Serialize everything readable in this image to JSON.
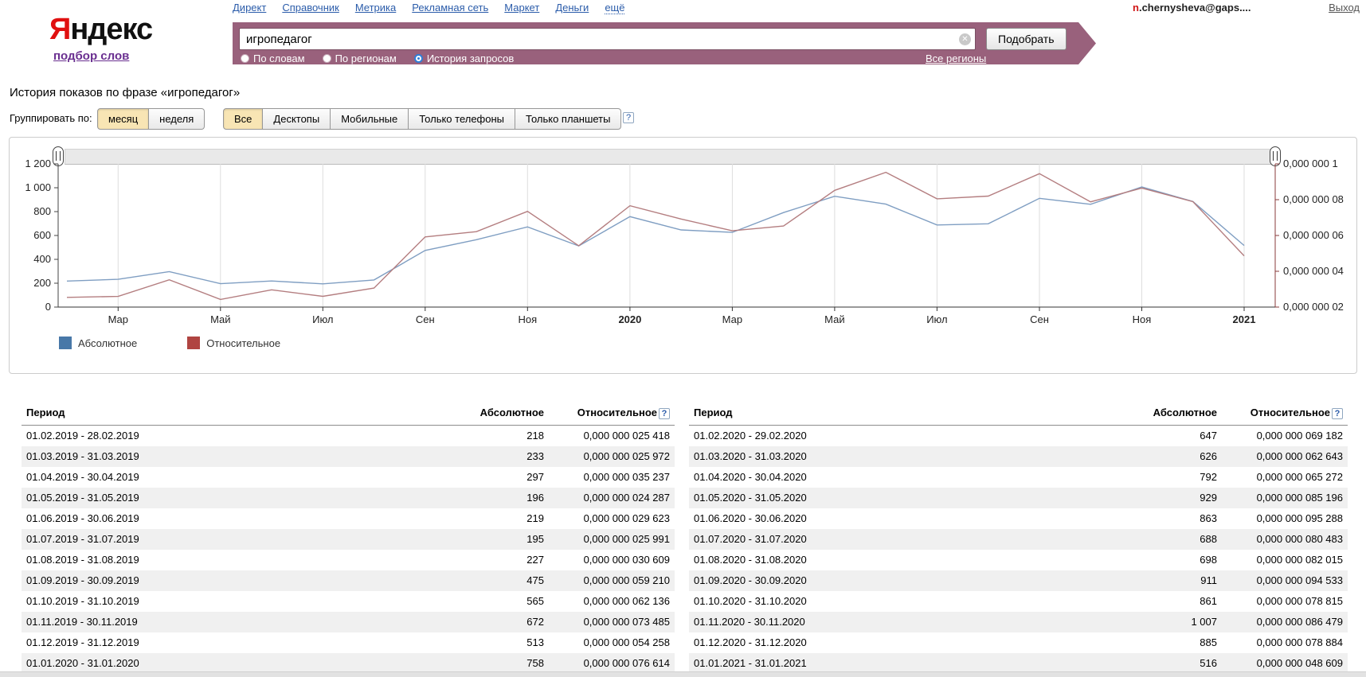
{
  "header": {
    "nav": [
      "Директ",
      "Справочник",
      "Метрика",
      "Рекламная сеть",
      "Маркет",
      "Деньги",
      "ещё"
    ],
    "logo_first_letter": "Я",
    "logo_rest": "ндекс",
    "logo_sub": "подбор слов",
    "user_highlight": "n",
    "user_rest": ".chernysheva@gaps....",
    "logout_label": "Выход"
  },
  "search": {
    "query": "игропедагог",
    "submit_label": "Подобрать",
    "modes": [
      {
        "label": "По словам",
        "selected": false
      },
      {
        "label": "По регионам",
        "selected": false
      },
      {
        "label": "История запросов",
        "selected": true
      }
    ],
    "regions_link": "Все регионы"
  },
  "page": {
    "title": "История показов по фразе «игропедагог»"
  },
  "filters": {
    "group_label": "Группировать по:",
    "group_options": [
      {
        "label": "месяц",
        "active": true
      },
      {
        "label": "неделя",
        "active": false
      }
    ],
    "device_options": [
      {
        "label": "Все",
        "active": true
      },
      {
        "label": "Десктопы",
        "active": false
      },
      {
        "label": "Мобильные",
        "active": false
      },
      {
        "label": "Только телефоны",
        "active": false
      },
      {
        "label": "Только планшеты",
        "active": false
      }
    ],
    "help_icon": "?"
  },
  "chart_data": {
    "type": "line",
    "x_categories": [
      "02.2019",
      "03.2019",
      "04.2019",
      "05.2019",
      "06.2019",
      "07.2019",
      "08.2019",
      "09.2019",
      "10.2019",
      "11.2019",
      "12.2019",
      "01.2020",
      "02.2020",
      "03.2020",
      "04.2020",
      "05.2020",
      "06.2020",
      "07.2020",
      "08.2020",
      "09.2020",
      "10.2020",
      "11.2020",
      "12.2020",
      "01.2021"
    ],
    "x_ticks": [
      {
        "label": "Мар",
        "index": 1,
        "bold": false
      },
      {
        "label": "Май",
        "index": 3,
        "bold": false
      },
      {
        "label": "Июл",
        "index": 5,
        "bold": false
      },
      {
        "label": "Сен",
        "index": 7,
        "bold": false
      },
      {
        "label": "Ноя",
        "index": 9,
        "bold": false
      },
      {
        "label": "2020",
        "index": 11,
        "bold": true
      },
      {
        "label": "Мар",
        "index": 13,
        "bold": false
      },
      {
        "label": "Май",
        "index": 15,
        "bold": false
      },
      {
        "label": "Июл",
        "index": 17,
        "bold": false
      },
      {
        "label": "Сен",
        "index": 19,
        "bold": false
      },
      {
        "label": "Ноя",
        "index": 21,
        "bold": false
      },
      {
        "label": "2021",
        "index": 23,
        "bold": true
      }
    ],
    "left_axis": {
      "ticks": [
        "1 200",
        "1 000",
        "800",
        "600",
        "400",
        "200",
        "0"
      ],
      "min": 0,
      "max": 1200
    },
    "right_axis": {
      "ticks": [
        "0,000 000 1",
        "0,000 000 08",
        "0,000 000 06",
        "0,000 000 04",
        "0,000 000 02"
      ],
      "min_e9": 20,
      "max_e9": 100
    },
    "series": [
      {
        "name": "Абсолютное",
        "axis": "left",
        "swatch_color": "#4878a8",
        "line_color": "#7f9ec2",
        "values": [
          218,
          233,
          297,
          196,
          219,
          195,
          227,
          475,
          565,
          672,
          513,
          758,
          647,
          626,
          792,
          929,
          863,
          688,
          698,
          911,
          861,
          1007,
          885,
          516
        ]
      },
      {
        "name": "Относительное",
        "axis": "right",
        "swatch_color": "#b04441",
        "line_color": "#b47e80",
        "values_e9": [
          25.418,
          25.972,
          35.237,
          24.287,
          29.623,
          25.991,
          30.609,
          59.21,
          62.136,
          73.485,
          54.258,
          76.614,
          69.182,
          62.643,
          65.272,
          85.196,
          95.288,
          80.483,
          82.015,
          94.533,
          78.815,
          86.479,
          78.884,
          48.609
        ]
      }
    ],
    "grid": true,
    "legend_position": "bottom-left",
    "axis_colors": {
      "left": "#444444",
      "right": "#8a3b3b",
      "x": "#333333",
      "grid": "#dddddd"
    }
  },
  "tables": {
    "headers": [
      "Период",
      "Абсолютное",
      "Относительное"
    ],
    "help_icon": "?",
    "left_rows": [
      [
        "01.02.2019 - 28.02.2019",
        "218",
        "0,000 000 025 418"
      ],
      [
        "01.03.2019 - 31.03.2019",
        "233",
        "0,000 000 025 972"
      ],
      [
        "01.04.2019 - 30.04.2019",
        "297",
        "0,000 000 035 237"
      ],
      [
        "01.05.2019 - 31.05.2019",
        "196",
        "0,000 000 024 287"
      ],
      [
        "01.06.2019 - 30.06.2019",
        "219",
        "0,000 000 029 623"
      ],
      [
        "01.07.2019 - 31.07.2019",
        "195",
        "0,000 000 025 991"
      ],
      [
        "01.08.2019 - 31.08.2019",
        "227",
        "0,000 000 030 609"
      ],
      [
        "01.09.2019 - 30.09.2019",
        "475",
        "0,000 000 059 210"
      ],
      [
        "01.10.2019 - 31.10.2019",
        "565",
        "0,000 000 062 136"
      ],
      [
        "01.11.2019 - 30.11.2019",
        "672",
        "0,000 000 073 485"
      ],
      [
        "01.12.2019 - 31.12.2019",
        "513",
        "0,000 000 054 258"
      ],
      [
        "01.01.2020 - 31.01.2020",
        "758",
        "0,000 000 076 614"
      ]
    ],
    "right_rows": [
      [
        "01.02.2020 - 29.02.2020",
        "647",
        "0,000 000 069 182"
      ],
      [
        "01.03.2020 - 31.03.2020",
        "626",
        "0,000 000 062 643"
      ],
      [
        "01.04.2020 - 30.04.2020",
        "792",
        "0,000 000 065 272"
      ],
      [
        "01.05.2020 - 31.05.2020",
        "929",
        "0,000 000 085 196"
      ],
      [
        "01.06.2020 - 30.06.2020",
        "863",
        "0,000 000 095 288"
      ],
      [
        "01.07.2020 - 31.07.2020",
        "688",
        "0,000 000 080 483"
      ],
      [
        "01.08.2020 - 31.08.2020",
        "698",
        "0,000 000 082 015"
      ],
      [
        "01.09.2020 - 30.09.2020",
        "911",
        "0,000 000 094 533"
      ],
      [
        "01.10.2020 - 31.10.2020",
        "861",
        "0,000 000 078 815"
      ],
      [
        "01.11.2020 - 30.11.2020",
        "1 007",
        "0,000 000 086 479"
      ],
      [
        "01.12.2020 - 31.12.2020",
        "885",
        "0,000 000 078 884"
      ],
      [
        "01.01.2021 - 31.01.2021",
        "516",
        "0,000 000 048 609"
      ]
    ]
  },
  "colors": {
    "brand_bar": "#99617c",
    "link": "#2b5caa",
    "logo_accent": "#e01010",
    "active_filter_bg": "#f8e5b4",
    "alt_row_bg": "#f0f0f0"
  }
}
